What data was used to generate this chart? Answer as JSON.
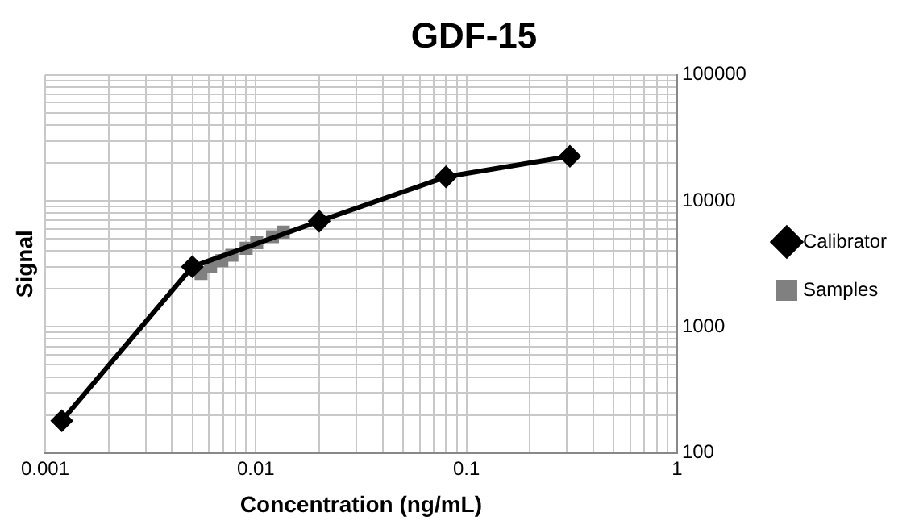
{
  "chart_data": {
    "type": "line",
    "title": "GDF-15",
    "xlabel": "Concentration (ng/mL)",
    "ylabel": "Signal",
    "log": "xy",
    "grid": true,
    "legend": "right",
    "xlim": [
      0.001,
      1
    ],
    "ylim": [
      100,
      100000
    ],
    "xticks": [
      0.001,
      {
        "value": 0.002,
        "label": null
      },
      {
        "value": 0.003,
        "label": null
      },
      {
        "value": 0.004,
        "label": null
      },
      {
        "value": 0.005,
        "label": null
      },
      {
        "value": 0.006,
        "label": null
      },
      {
        "value": 0.007,
        "label": null
      },
      {
        "value": 0.008,
        "label": null
      },
      {
        "value": 0.009,
        "label": null
      },
      0.01,
      {
        "value": 0.02,
        "label": null
      },
      {
        "value": 0.03,
        "label": null
      },
      {
        "value": 0.04,
        "label": null
      },
      {
        "value": 0.05,
        "label": null
      },
      {
        "value": 0.06,
        "label": null
      },
      {
        "value": 0.07,
        "label": null
      },
      {
        "value": 0.08,
        "label": null
      },
      {
        "value": 0.09,
        "label": null
      },
      0.1,
      {
        "value": 0.2,
        "label": null
      },
      {
        "value": 0.3,
        "label": null
      },
      {
        "value": 0.4,
        "label": null
      },
      {
        "value": 0.5,
        "label": null
      },
      {
        "value": 0.6,
        "label": null
      },
      {
        "value": 0.7,
        "label": null
      },
      {
        "value": 0.8,
        "label": null
      },
      {
        "value": 0.9,
        "label": null
      },
      1
    ],
    "yticks": [
      100,
      {
        "value": 200,
        "label": null
      },
      {
        "value": 300,
        "label": null
      },
      {
        "value": 400,
        "label": null
      },
      {
        "value": 500,
        "label": null
      },
      {
        "value": 600,
        "label": null
      },
      {
        "value": 700,
        "label": null
      },
      {
        "value": 800,
        "label": null
      },
      {
        "value": 900,
        "label": null
      },
      1000,
      {
        "value": 2000,
        "label": null
      },
      {
        "value": 3000,
        "label": null
      },
      {
        "value": 4000,
        "label": null
      },
      {
        "value": 5000,
        "label": null
      },
      {
        "value": 6000,
        "label": null
      },
      {
        "value": 7000,
        "label": null
      },
      {
        "value": 8000,
        "label": null
      },
      {
        "value": 9000,
        "label": null
      },
      10000,
      {
        "value": 20000,
        "label": null
      },
      {
        "value": 30000,
        "label": null
      },
      {
        "value": 40000,
        "label": null
      },
      {
        "value": 50000,
        "label": null
      },
      {
        "value": 60000,
        "label": null
      },
      {
        "value": 70000,
        "label": null
      },
      {
        "value": 80000,
        "label": null
      },
      {
        "value": 90000,
        "label": null
      },
      100000
    ],
    "series": [
      {
        "name": "Calibrator",
        "marker": "diamond",
        "color": "#000000",
        "x": [
          0.0012,
          0.005,
          0.02,
          0.08,
          0.31
        ],
        "values": [
          180,
          3000,
          6900,
          15500,
          22600
        ]
      },
      {
        "name": "Samples",
        "type": "scatter",
        "marker": "square",
        "color": "#808080",
        "x": [
          0.0055,
          0.0061,
          0.0069,
          0.0077,
          0.009,
          0.0101,
          0.012,
          0.0135
        ],
        "values": [
          2650,
          3000,
          3350,
          3700,
          4200,
          4650,
          5200,
          5650
        ]
      }
    ]
  }
}
